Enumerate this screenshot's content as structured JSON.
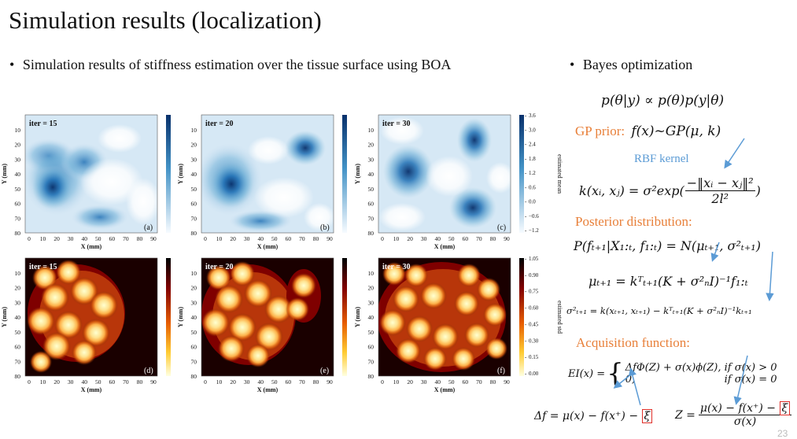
{
  "title": "Simulation results (localization)",
  "left_bullet": "Simulation results of stiffness estimation over the tissue surface using BOA",
  "right_bullet": "Bayes optimization",
  "bullet_symbol": "•",
  "panels": {
    "top": [
      {
        "iter": "iter = 15",
        "letter": "(a)"
      },
      {
        "iter": "iter = 20",
        "letter": "(b)"
      },
      {
        "iter": "iter = 30",
        "letter": "(c)"
      }
    ],
    "bottom": [
      {
        "iter": "iter = 15",
        "letter": "(d)"
      },
      {
        "iter": "iter = 20",
        "letter": "(e)"
      },
      {
        "iter": "iter = 30",
        "letter": "(f)"
      }
    ],
    "xlabel": "X (mm)",
    "ylabel": "Y (mm)",
    "xticks": [
      "0",
      "10",
      "20",
      "30",
      "40",
      "50",
      "60",
      "70",
      "80",
      "90"
    ],
    "yticks": [
      "10",
      "20",
      "30",
      "40",
      "50",
      "60",
      "70",
      "80"
    ],
    "mean_cbar": {
      "label": "estimated mean",
      "ticks": [
        "3.6",
        "3.0",
        "2.4",
        "1.8",
        "1.2",
        "0.6",
        "0.0",
        "−0.6",
        "−1.2"
      ]
    },
    "std_cbar": {
      "label": "estimated std",
      "ticks": [
        "1.05",
        "0.90",
        "0.75",
        "0.60",
        "0.45",
        "0.30",
        "0.15",
        "0.00"
      ]
    }
  },
  "eq": {
    "bayes": "p(θ|y) ∝ p(θ)p(y|θ)",
    "gp_label": "GP prior:",
    "gp_expr": "f(x)~GP(μ, k)",
    "rbf": "RBF kernel",
    "kernel_lhs": "k(xᵢ, xⱼ) = σ²exp(",
    "kernel_num": "−‖xᵢ − xⱼ‖²",
    "kernel_den": "2l²",
    "kernel_close": ")",
    "posterior_label": "Posterior distribution:",
    "posterior": "P(fₜ₊₁|X₁:ₜ, f₁:ₜ) = N(μₜ₊₁, σ²ₜ₊₁)",
    "mu": "μₜ₊₁ = kᵀₜ₊₁(K + σ²ₙI)⁻¹f₁:ₜ",
    "sigma": "σ²ₜ₊₁ = k(xₜ₊₁, xₜ₊₁) − kᵀₜ₊₁(K + σ²ₙI)⁻¹kₜ₊₁",
    "acq_label": "Acquisition function:",
    "ei_lhs": "EI(x) =",
    "ei_line1": "ΔfΦ(Z) + σ(x)ϕ(Z), if σ(x) > 0",
    "ei_line2a": "0,",
    "ei_line2b": "if σ(x) = 0",
    "delta": "Δf = μ(x) − f(x⁺) −",
    "xi": "ξ",
    "z_lhs": "Z =",
    "z_num": "μ(x) − f(x⁺) −",
    "z_den": "σ(x)"
  },
  "page_number": "23",
  "colors": {
    "accent_orange": "#e8803a",
    "accent_blue": "#5b9bd5",
    "highlight_red": "#e0302a"
  }
}
